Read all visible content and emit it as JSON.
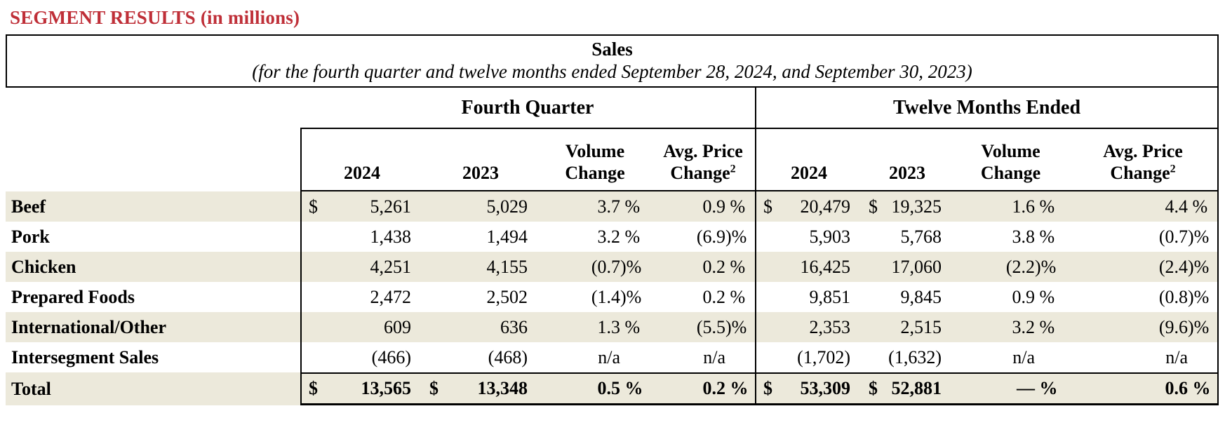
{
  "title": "SEGMENT RESULTS (in millions)",
  "table": {
    "caption": {
      "title": "Sales",
      "subtitle": "(for the fourth quarter and twelve months ended September 28, 2024, and September 30, 2023)"
    },
    "groups": {
      "fq": "Fourth Quarter",
      "tm": "Twelve Months Ended"
    },
    "col_headers": {
      "y2024": "2024",
      "y2023": "2023",
      "volume_line1": "Volume",
      "volume_line2": "Change",
      "price_line1": "Avg. Price",
      "price_line2": "Change",
      "price_sup": "2"
    },
    "colors": {
      "title_red": "#bf2f38",
      "row_stripe": "#ece9db",
      "border": "#000000"
    },
    "rows": [
      {
        "label": "Beef",
        "shaded": true,
        "total": false,
        "values": [
          {
            "sym": "$",
            "val": "5,261"
          },
          {
            "sym": "",
            "val": "5,029"
          },
          {
            "num": "3.7",
            "suf": " %"
          },
          {
            "num": "0.9",
            "suf": " %"
          },
          {
            "sym": "$",
            "val": "20,479"
          },
          {
            "sym": "$",
            "val": "19,325"
          },
          {
            "num": "1.6",
            "suf": " %"
          },
          {
            "num": "4.4",
            "suf": " %"
          }
        ]
      },
      {
        "label": "Pork",
        "shaded": false,
        "total": false,
        "values": [
          {
            "sym": "",
            "val": "1,438"
          },
          {
            "sym": "",
            "val": "1,494"
          },
          {
            "num": "3.2",
            "suf": " %"
          },
          {
            "num": "(6.9",
            "suf": ")%"
          },
          {
            "sym": "",
            "val": "5,903"
          },
          {
            "sym": "",
            "val": "5,768"
          },
          {
            "num": "3.8",
            "suf": " %"
          },
          {
            "num": "(0.7",
            "suf": ")%"
          }
        ]
      },
      {
        "label": "Chicken",
        "shaded": true,
        "total": false,
        "values": [
          {
            "sym": "",
            "val": "4,251"
          },
          {
            "sym": "",
            "val": "4,155"
          },
          {
            "num": "(0.7",
            "suf": ")%"
          },
          {
            "num": "0.2",
            "suf": " %"
          },
          {
            "sym": "",
            "val": "16,425"
          },
          {
            "sym": "",
            "val": "17,060"
          },
          {
            "num": "(2.2",
            "suf": ")%"
          },
          {
            "num": "(2.4",
            "suf": ")%"
          }
        ]
      },
      {
        "label": "Prepared Foods",
        "shaded": false,
        "total": false,
        "values": [
          {
            "sym": "",
            "val": "2,472"
          },
          {
            "sym": "",
            "val": "2,502"
          },
          {
            "num": "(1.4",
            "suf": ")%"
          },
          {
            "num": "0.2",
            "suf": " %"
          },
          {
            "sym": "",
            "val": "9,851"
          },
          {
            "sym": "",
            "val": "9,845"
          },
          {
            "num": "0.9",
            "suf": " %"
          },
          {
            "num": "(0.8",
            "suf": ")%"
          }
        ]
      },
      {
        "label": "International/Other",
        "shaded": true,
        "total": false,
        "values": [
          {
            "sym": "",
            "val": "609"
          },
          {
            "sym": "",
            "val": "636"
          },
          {
            "num": "1.3",
            "suf": " %"
          },
          {
            "num": "(5.5",
            "suf": ")%"
          },
          {
            "sym": "",
            "val": "2,353"
          },
          {
            "sym": "",
            "val": "2,515"
          },
          {
            "num": "3.2",
            "suf": " %"
          },
          {
            "num": "(9.6",
            "suf": ")%"
          }
        ]
      },
      {
        "label": "Intersegment Sales",
        "shaded": false,
        "total": false,
        "values": [
          {
            "sym": "",
            "val": "(466)"
          },
          {
            "sym": "",
            "val": "(468)"
          },
          {
            "num": "n/a",
            "suf": ""
          },
          {
            "num": "n/a",
            "suf": ""
          },
          {
            "sym": "",
            "val": "(1,702)"
          },
          {
            "sym": "",
            "val": "(1,632)"
          },
          {
            "num": "n/a",
            "suf": ""
          },
          {
            "num": "n/a",
            "suf": ""
          }
        ]
      },
      {
        "label": "Total",
        "shaded": true,
        "total": true,
        "values": [
          {
            "sym": "$",
            "val": "13,565"
          },
          {
            "sym": "$",
            "val": "13,348"
          },
          {
            "num": "0.5",
            "suf": " %"
          },
          {
            "num": "0.2",
            "suf": " %"
          },
          {
            "sym": "$",
            "val": "53,309"
          },
          {
            "sym": "$",
            "val": "52,881"
          },
          {
            "num": "—",
            "suf": " %"
          },
          {
            "num": "0.6",
            "suf": " %"
          }
        ]
      }
    ]
  }
}
